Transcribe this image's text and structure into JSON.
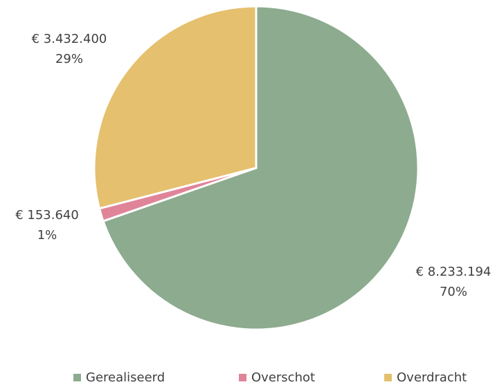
{
  "chart_data": {
    "type": "pie",
    "categories": [
      "Gerealiseerd",
      "Overschot",
      "Overdracht"
    ],
    "values": [
      8233194,
      153640,
      3432400
    ],
    "value_labels": [
      "€ 8.233.194",
      "€ 153.640",
      "€ 3.432.400"
    ],
    "percent_labels": [
      "70%",
      "1%",
      "29%"
    ],
    "colors": [
      "#8dab8e",
      "#e0849a",
      "#e5c06e"
    ],
    "legend": "bottom"
  }
}
